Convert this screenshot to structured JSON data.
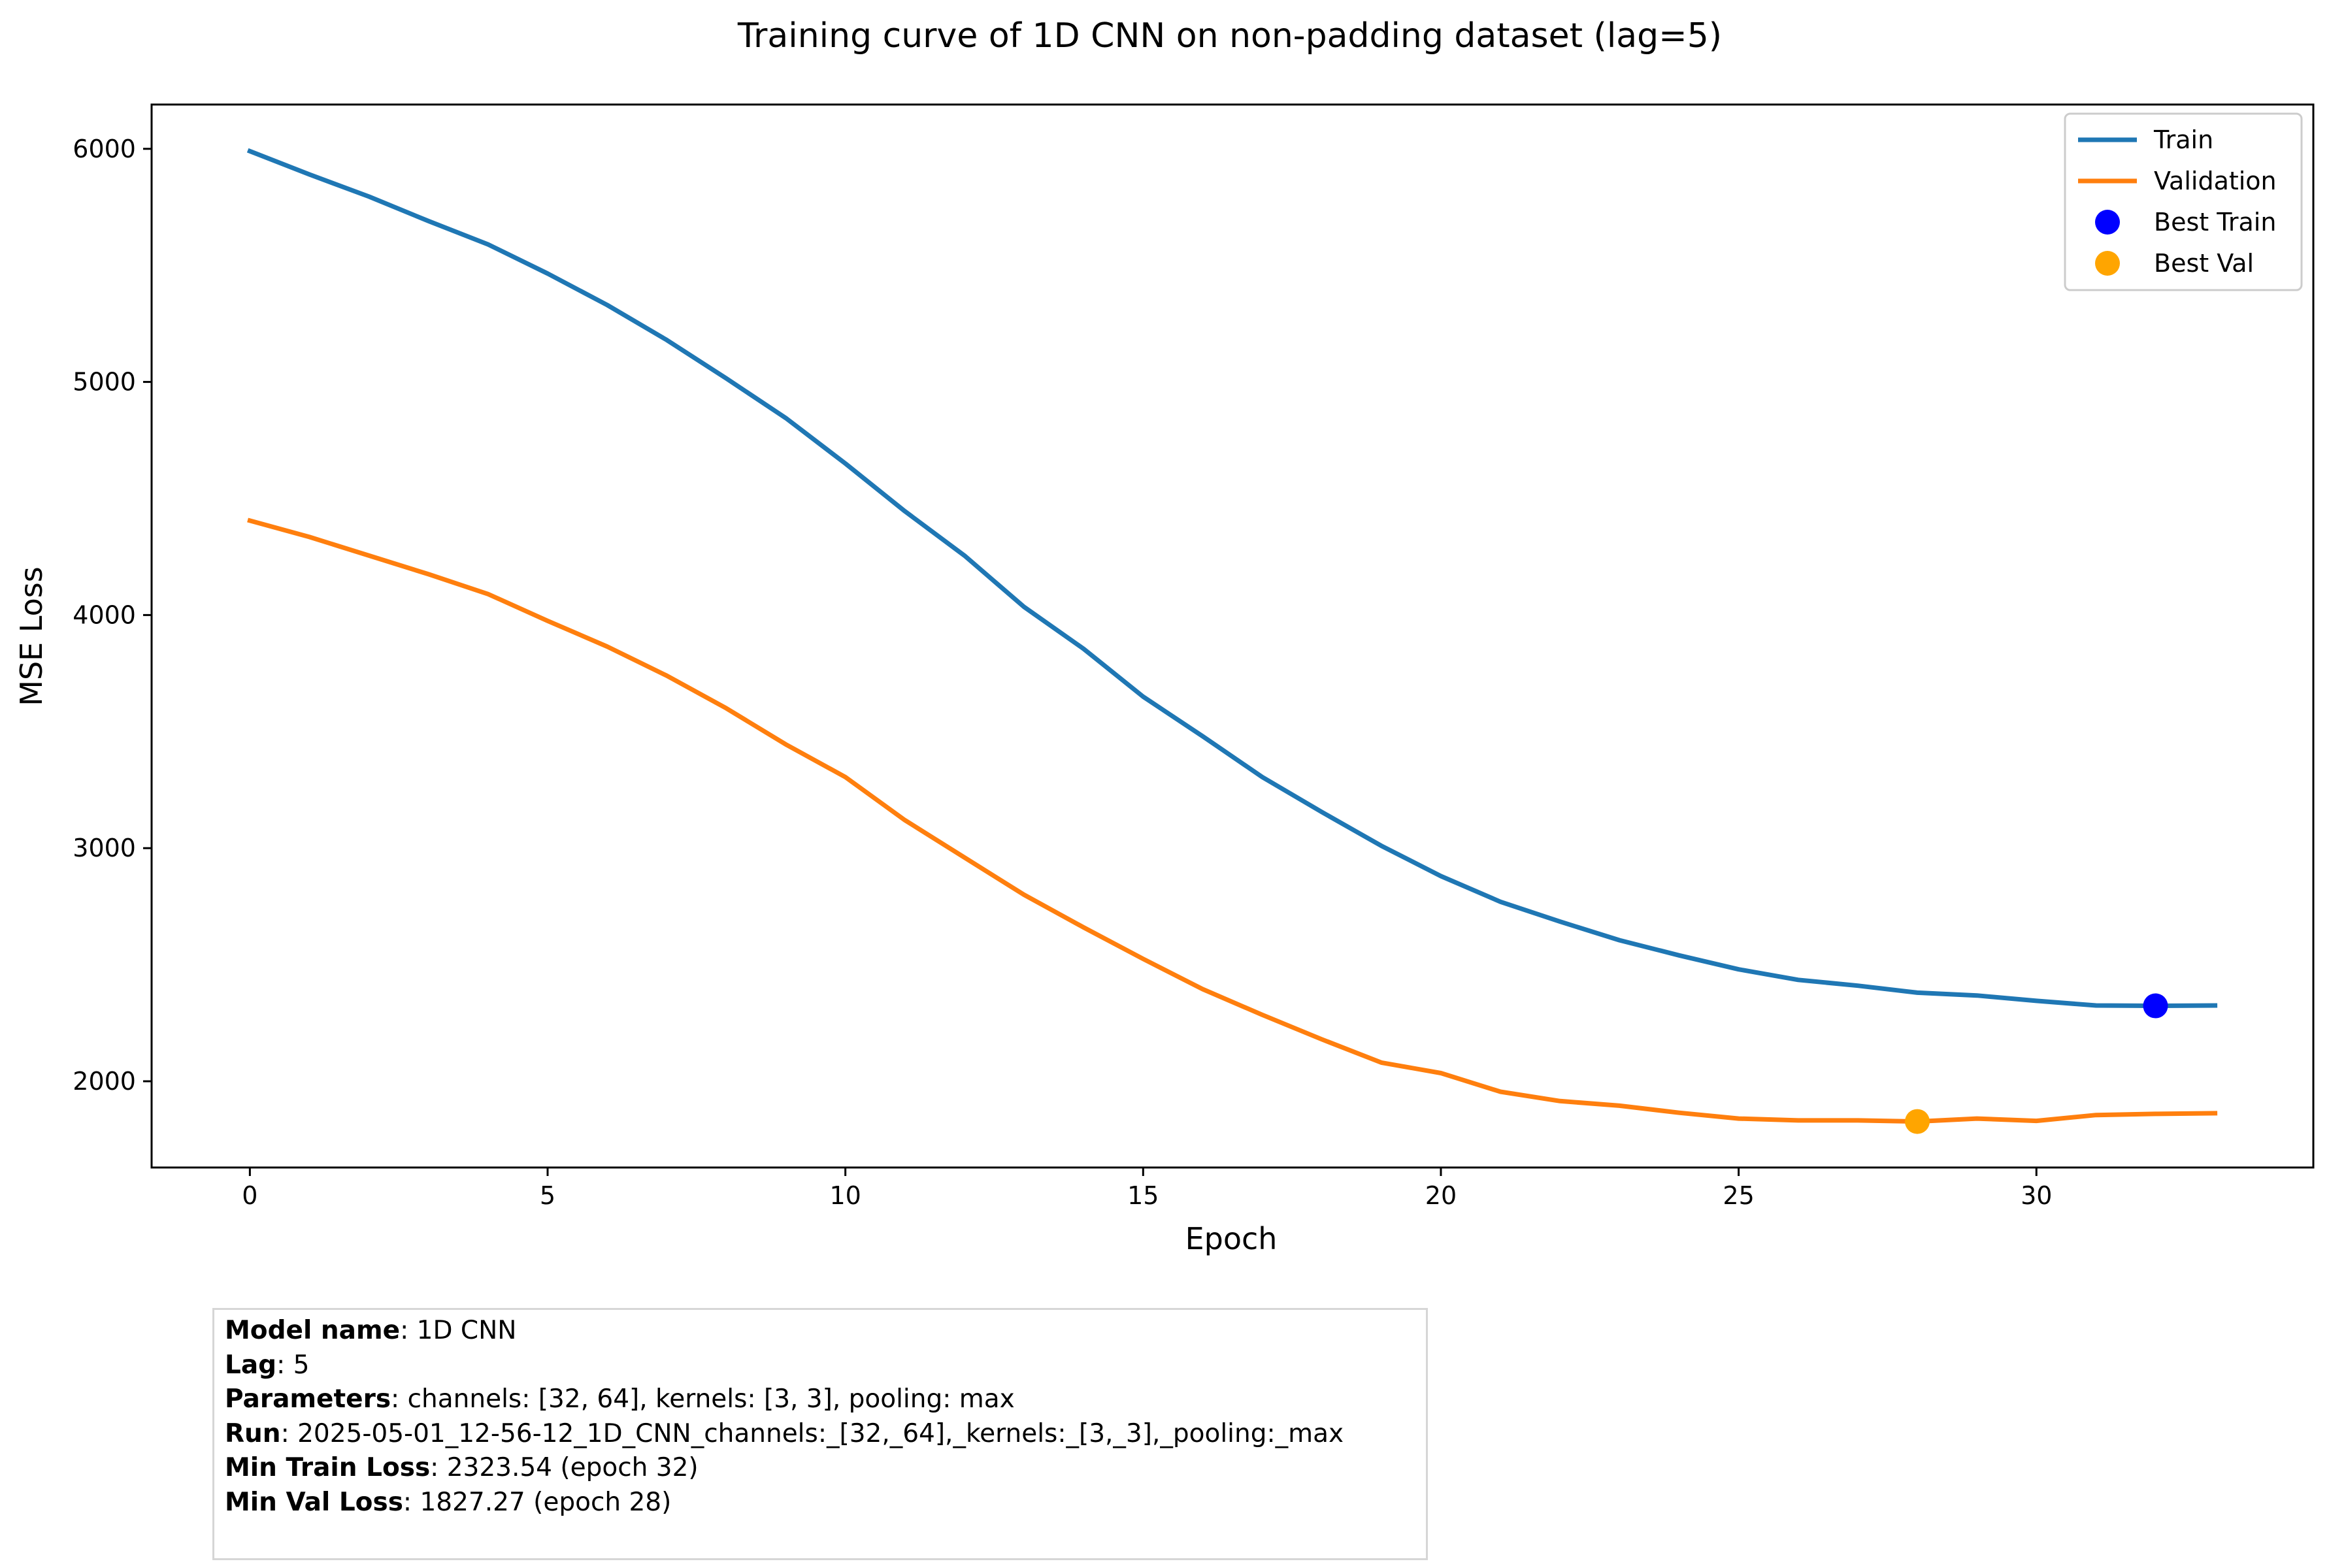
{
  "chart_data": {
    "type": "line",
    "title": "Training curve of 1D CNN on non-padding dataset (lag=5)",
    "xlabel": "Epoch",
    "ylabel": "MSE Loss",
    "xlim": [
      -1.65,
      34.65
    ],
    "ylim": [
      1630,
      6190
    ],
    "xticks": [
      0,
      5,
      10,
      15,
      20,
      25,
      30
    ],
    "yticks": [
      2000,
      3000,
      4000,
      5000,
      6000
    ],
    "grid": false,
    "legend_position": "top-right",
    "x": [
      0,
      1,
      2,
      3,
      4,
      5,
      6,
      7,
      8,
      9,
      10,
      11,
      12,
      13,
      14,
      15,
      16,
      17,
      18,
      19,
      20,
      21,
      22,
      23,
      24,
      25,
      26,
      27,
      28,
      29,
      30,
      31,
      32,
      33
    ],
    "series": [
      {
        "name": "Train",
        "color": "#1f77b4",
        "values": [
          5990,
          5890,
          5795,
          5690,
          5590,
          5465,
          5330,
          5180,
          5015,
          4845,
          4650,
          4445,
          4255,
          4035,
          3855,
          3650,
          3480,
          3305,
          3155,
          3010,
          2880,
          2770,
          2685,
          2605,
          2540,
          2480,
          2435,
          2410,
          2380,
          2368,
          2345,
          2325,
          2323.54,
          2325
        ]
      },
      {
        "name": "Validation",
        "color": "#ff7f0e",
        "values": [
          4405,
          4335,
          4255,
          4175,
          4090,
          3975,
          3865,
          3740,
          3600,
          3445,
          3305,
          3120,
          2960,
          2800,
          2660,
          2525,
          2395,
          2285,
          2180,
          2080,
          2035,
          1955,
          1915,
          1895,
          1865,
          1840,
          1832,
          1832,
          1827.27,
          1840,
          1830,
          1855,
          1860,
          1863
        ]
      }
    ],
    "markers": [
      {
        "name": "Best Train",
        "color": "#0000ff",
        "x": 32,
        "y": 2323.54
      },
      {
        "name": "Best Val",
        "color": "#ffa500",
        "x": 28,
        "y": 1827.27
      }
    ]
  },
  "info": [
    {
      "key": "Model name",
      "value": ": 1D CNN"
    },
    {
      "key": "Lag",
      "value": ": 5"
    },
    {
      "key": "Parameters",
      "value": ": channels: [32, 64], kernels: [3, 3], pooling: max"
    },
    {
      "key": "Run",
      "value": ": 2025-05-01_12-56-12_1D_CNN_channels:_[32,_64],_kernels:_[3,_3],_pooling:_max"
    },
    {
      "key": "Min Train Loss",
      "value": ": 2323.54 (epoch 32)"
    },
    {
      "key": "Min Val Loss",
      "value": ": 1827.27 (epoch 28)"
    }
  ]
}
